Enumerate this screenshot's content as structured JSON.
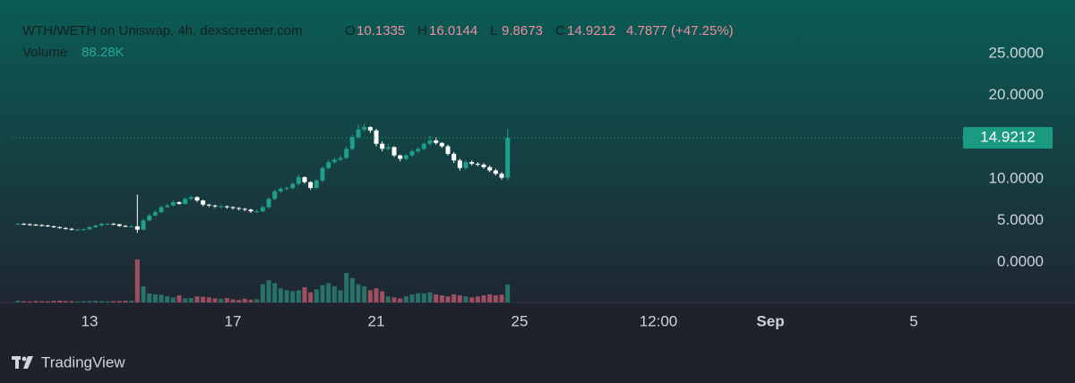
{
  "chart_data": {
    "type": "candlestick",
    "title": "WTH/WETH on Uniswap, 4h, dexscreener.com",
    "ohlc_legend": [
      {
        "key": "O",
        "value": 10.1335
      },
      {
        "key": "H",
        "value": 16.0144
      },
      {
        "key": "L",
        "value": 9.8673
      },
      {
        "key": "C",
        "value": 14.9212
      }
    ],
    "change": "4.7877 (+47.25%)",
    "volume_legend": {
      "name": "Volume",
      "value": 88.28,
      "label": "88.28K"
    },
    "up_color": "#1f9e89",
    "down_color": "#ffffff",
    "volume_up_color": "#2b7f72",
    "volume_down_color": "#b5566a",
    "x": [
      11,
      11.167,
      11.333,
      11.5,
      11.667,
      11.833,
      12,
      12.167,
      12.333,
      12.5,
      12.667,
      12.833,
      13,
      13.167,
      13.333,
      13.5,
      13.667,
      13.833,
      14,
      14.167,
      14.333,
      14.5,
      14.667,
      14.833,
      15,
      15.167,
      15.333,
      15.5,
      15.667,
      15.833,
      16,
      16.167,
      16.333,
      16.5,
      16.667,
      16.833,
      17,
      17.167,
      17.333,
      17.5,
      17.667,
      17.833,
      18,
      18.167,
      18.333,
      18.5,
      18.667,
      18.833,
      19,
      19.167,
      19.333,
      19.5,
      19.667,
      19.833,
      20,
      20.167,
      20.333,
      20.5,
      20.667,
      20.833,
      21,
      21.167,
      21.333,
      21.5,
      21.667,
      21.833,
      22,
      22.167,
      22.333,
      22.5,
      22.667,
      22.833,
      23,
      23.167,
      23.333,
      23.5,
      23.667,
      23.833,
      24,
      24.167,
      24.333,
      24.5,
      24.667
    ],
    "open": [
      4.6,
      4.6,
      4.55,
      4.5,
      4.45,
      4.4,
      4.3,
      4.2,
      4.1,
      4.0,
      3.9,
      3.9,
      3.95,
      4.2,
      4.4,
      4.6,
      4.6,
      4.55,
      4.35,
      4.3,
      4.3,
      3.9,
      5.0,
      5.6,
      6.0,
      6.6,
      6.8,
      7.2,
      7.0,
      7.6,
      7.8,
      7.4,
      6.9,
      6.8,
      6.7,
      6.7,
      6.6,
      6.5,
      6.4,
      6.3,
      6.1,
      6.1,
      6.6,
      7.6,
      8.5,
      8.8,
      8.9,
      9.4,
      10.2,
      9.6,
      8.9,
      9.8,
      11.3,
      12.0,
      12.3,
      12.5,
      13.6,
      15.0,
      15.9,
      16.2,
      15.8,
      14.2,
      13.6,
      13.8,
      12.8,
      12.4,
      12.8,
      13.3,
      13.6,
      14.2,
      14.6,
      14.3,
      13.9,
      13.0,
      12.2,
      11.3,
      12.0,
      11.8,
      11.7,
      11.4,
      11.0,
      10.6,
      10.1335
    ],
    "high": [
      4.7,
      4.7,
      4.65,
      4.6,
      4.55,
      4.5,
      4.4,
      4.3,
      4.2,
      4.1,
      4.0,
      4.05,
      4.3,
      4.5,
      4.7,
      4.7,
      4.7,
      4.6,
      4.45,
      4.45,
      8.1,
      5.2,
      5.8,
      6.2,
      6.8,
      7.0,
      7.4,
      7.3,
      7.8,
      8.0,
      7.9,
      7.5,
      7.0,
      6.9,
      6.9,
      6.8,
      6.7,
      6.6,
      6.5,
      6.4,
      6.3,
      6.8,
      7.8,
      8.7,
      9.0,
      9.1,
      9.6,
      10.5,
      10.3,
      9.7,
      10.0,
      11.5,
      12.3,
      12.6,
      12.8,
      13.9,
      15.3,
      16.5,
      16.6,
      16.3,
      16.0,
      14.5,
      14.2,
      13.9,
      12.9,
      13.0,
      13.5,
      13.8,
      14.4,
      15.2,
      15.0,
      14.4,
      14.1,
      13.2,
      12.4,
      12.2,
      12.2,
      12.0,
      11.9,
      11.6,
      11.2,
      10.8,
      16.0144
    ],
    "low": [
      4.5,
      4.45,
      4.4,
      4.35,
      4.3,
      4.2,
      4.1,
      4.0,
      3.9,
      3.8,
      3.8,
      3.8,
      3.85,
      4.1,
      4.3,
      4.5,
      4.45,
      4.25,
      4.2,
      4.2,
      3.5,
      3.8,
      4.9,
      5.5,
      5.9,
      6.5,
      6.7,
      6.9,
      6.9,
      7.4,
      7.2,
      6.7,
      6.6,
      6.5,
      6.5,
      6.4,
      6.3,
      6.2,
      6.1,
      5.9,
      5.9,
      6.0,
      6.4,
      7.4,
      8.3,
      8.6,
      8.7,
      9.2,
      9.4,
      8.7,
      8.8,
      9.6,
      11.1,
      11.8,
      12.1,
      12.3,
      13.4,
      14.8,
      15.6,
      15.5,
      13.9,
      13.3,
      13.4,
      12.6,
      12.1,
      12.2,
      12.6,
      13.1,
      13.4,
      14.0,
      14.1,
      13.7,
      12.8,
      11.9,
      11.0,
      11.1,
      11.6,
      11.5,
      11.2,
      10.8,
      10.4,
      9.9,
      9.8673
    ],
    "close": [
      4.6,
      4.55,
      4.5,
      4.45,
      4.4,
      4.3,
      4.2,
      4.1,
      4.0,
      3.9,
      3.9,
      3.95,
      4.2,
      4.4,
      4.6,
      4.6,
      4.55,
      4.35,
      4.3,
      4.3,
      3.9,
      5.0,
      5.6,
      6.0,
      6.6,
      6.8,
      7.2,
      7.0,
      7.6,
      7.8,
      7.4,
      6.9,
      6.8,
      6.7,
      6.7,
      6.6,
      6.5,
      6.4,
      6.3,
      6.1,
      6.1,
      6.6,
      7.6,
      8.5,
      8.8,
      8.9,
      9.4,
      10.2,
      9.6,
      8.9,
      9.8,
      11.3,
      12.0,
      12.3,
      12.5,
      13.6,
      15.0,
      15.9,
      16.2,
      15.8,
      14.2,
      13.6,
      13.8,
      12.8,
      12.4,
      12.8,
      13.3,
      13.6,
      14.2,
      14.6,
      14.3,
      13.9,
      13.0,
      12.2,
      11.3,
      12.0,
      11.8,
      11.7,
      11.4,
      11.0,
      10.6,
      10.13,
      14.9212
    ],
    "volume": [
      8,
      6,
      5,
      7,
      6,
      5,
      8,
      9,
      7,
      6,
      5,
      6,
      7,
      8,
      6,
      5,
      6,
      7,
      8,
      9,
      212,
      80,
      45,
      40,
      38,
      30,
      25,
      35,
      20,
      22,
      30,
      28,
      25,
      20,
      18,
      22,
      15,
      12,
      18,
      14,
      16,
      90,
      110,
      95,
      70,
      60,
      55,
      60,
      75,
      50,
      65,
      85,
      95,
      80,
      60,
      145,
      120,
      90,
      80,
      60,
      70,
      55,
      30,
      25,
      20,
      30,
      40,
      45,
      45,
      50,
      40,
      35,
      30,
      40,
      35,
      30,
      25,
      30,
      35,
      40,
      35,
      38,
      88.28
    ],
    "volume_lim": [
      0,
      1430
    ],
    "xlim": [
      10.85,
      37.625
    ],
    "xticks": [
      13,
      17,
      21,
      25,
      {
        "value": 28.875,
        "label": "12:00"
      },
      {
        "value": 32,
        "label": "Sep"
      },
      {
        "value": 36,
        "label": "5"
      }
    ],
    "ylim": [
      -4.83,
      29.94
    ],
    "yticks": [
      {
        "value": 0,
        "label": "0.0000"
      },
      {
        "value": 5,
        "label": "5.0000"
      },
      {
        "value": 10,
        "label": "10.0000"
      },
      {
        "value": 20,
        "label": "20.0000"
      },
      {
        "value": 25,
        "label": "25.0000"
      }
    ]
  },
  "footer": {
    "brand": "TradingView"
  }
}
